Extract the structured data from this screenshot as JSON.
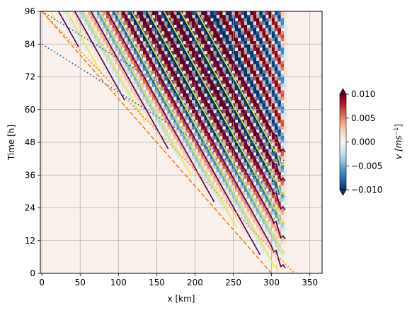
{
  "chart_data": {
    "type": "heatmap",
    "xlabel": "x [km]",
    "ylabel": "Time [h]",
    "x_ticks": [
      0,
      50,
      100,
      150,
      200,
      250,
      300,
      350
    ],
    "y_ticks": [
      0,
      12,
      24,
      36,
      48,
      60,
      72,
      84,
      96
    ],
    "xlim": [
      -2,
      366
    ],
    "ylim": [
      0,
      96
    ],
    "grid": true,
    "colormap": "RdBu_r",
    "colorbar": {
      "label_math": "v [ms",
      "label_exp": "−1",
      "label_close": "]",
      "ticks": [
        {
          "value": 0.01,
          "label": "0.010"
        },
        {
          "value": 0.005,
          "label": "0.005"
        },
        {
          "value": 0.0,
          "label": "0.000"
        },
        {
          "value": -0.005,
          "label": "−0.005"
        },
        {
          "value": -0.01,
          "label": "−0.010"
        }
      ],
      "range": [
        -0.01,
        0.01
      ],
      "extend": "both"
    },
    "field": {
      "wave_front_line": {
        "x": [
          0,
          300
        ],
        "t": [
          96,
          0
        ],
        "style": "dashed",
        "color": "#ff7f0e"
      },
      "wave_front_line_2": {
        "x": [
          300,
          330
        ],
        "t": [
          0,
          0
        ],
        "style": "dotted",
        "color": "#ff7f0e"
      },
      "blue_dotted_lines": [
        {
          "x": [
            0,
            318
          ],
          "t": [
            96,
            41
          ],
          "color": "#1f77b4"
        },
        {
          "x": [
            0,
            318
          ],
          "t": [
            84,
            28
          ],
          "color": "#1f77b4"
        }
      ],
      "band_count": 9,
      "band_slope_h_per_km": -0.5,
      "amplitude_max": 0.01,
      "right_edge_km": 318
    },
    "contour_colors": {
      "positive": "#fde725",
      "negative": "#440154"
    },
    "colors": {
      "grid": "#b0b0b0",
      "orange": "#ff7f0e",
      "blue": "#1f77b4"
    }
  }
}
